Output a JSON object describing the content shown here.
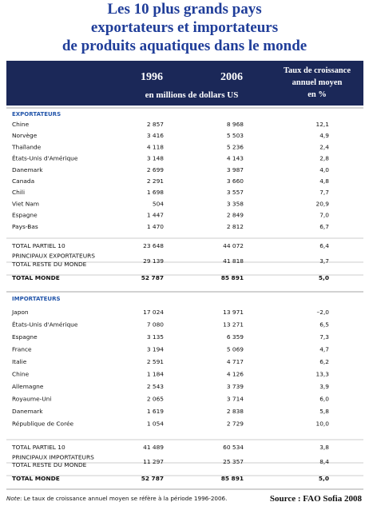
{
  "header": {
    "title": [
      "Les 10 plus grands pays",
      "exportateurs et importateurs",
      "de produits aquatiques dans le monde"
    ]
  },
  "table": {
    "columns": {
      "y1": "1996",
      "y2": "2006",
      "rate": [
        "Taux de croissance",
        "annuel moyen",
        "en %"
      ],
      "unit": "en millions de dollars US"
    },
    "sections": [
      {
        "title": "EXPORTATEURS",
        "rows": [
          [
            "Chine",
            "2 857",
            "8 968",
            "12,1"
          ],
          [
            "Norvège",
            "3 416",
            "5 503",
            "4,9"
          ],
          [
            "Thaïlande",
            "4 118",
            "5 236",
            "2,4"
          ],
          [
            "États-Unis d'Amérique",
            "3 148",
            "4 143",
            "2,8"
          ],
          [
            "Danemark",
            "2 699",
            "3 987",
            "4,0"
          ],
          [
            "Canada",
            "2 291",
            "3 660",
            "4,8"
          ],
          [
            "Chili",
            "1 698",
            "3 557",
            "7,7"
          ],
          [
            "Viet Nam",
            "504",
            "3 358",
            "20,9"
          ],
          [
            "Espagne",
            "1 447",
            "2 849",
            "7,0"
          ],
          [
            "Pays-Bas",
            "1 470",
            "2 812",
            "6,7"
          ]
        ],
        "totals": [
          {
            "label": [
              "TOTAL PARTIEL 10",
              "PRINCIPAUX EXPORTATEURS"
            ],
            "values": [
              "23 648",
              "44 072",
              "6,4"
            ]
          },
          {
            "label": [
              "TOTAL RESTE DU MONDE"
            ],
            "values": [
              "29 139",
              "41 818",
              "3,7"
            ]
          },
          {
            "label": [
              "TOTAL MONDE"
            ],
            "values": [
              "52 787",
              "85 891",
              "5,0"
            ]
          }
        ]
      },
      {
        "title": "IMPORTATEURS",
        "rows": [
          [
            "Japon",
            "17 024",
            "13 971",
            "–2,0"
          ],
          [
            "États-Unis d'Amérique",
            "7 080",
            "13 271",
            "6,5"
          ],
          [
            "Espagne",
            "3 135",
            "6 359",
            "7,3"
          ],
          [
            "France",
            "3 194",
            "5 069",
            "4,7"
          ],
          [
            "Italie",
            "2 591",
            "4 717",
            "6,2"
          ],
          [
            "Chine",
            "1 184",
            "4 126",
            "13,3"
          ],
          [
            "Allemagne",
            "2 543",
            "3 739",
            "3,9"
          ],
          [
            "Royaume-Uni",
            "2 065",
            "3 714",
            "6,0"
          ],
          [
            "Danemark",
            "1 619",
            "2 838",
            "5,8"
          ],
          [
            "République de Corée",
            "1 054",
            "2 729",
            "10,0"
          ]
        ],
        "totals": [
          {
            "label": [
              "TOTAL PARTIEL 10",
              "PRINCIPAUX IMPORTATEURS"
            ],
            "values": [
              "41 489",
              "60 534",
              "3,8"
            ]
          },
          {
            "label": [
              "TOTAL RESTE DU MONDE"
            ],
            "values": [
              "11 297",
              "25 357",
              "8,4"
            ]
          },
          {
            "label": [
              "TOTAL MONDE"
            ],
            "values": [
              "52 787",
              "85 891",
              "5,0"
            ]
          }
        ]
      }
    ]
  },
  "footer": {
    "note_label": "Note",
    "note": ": Le taux de croissance annuel moyen se réfère à la période 1996-2006.",
    "source": "Source : FAO Sofia 2008"
  }
}
